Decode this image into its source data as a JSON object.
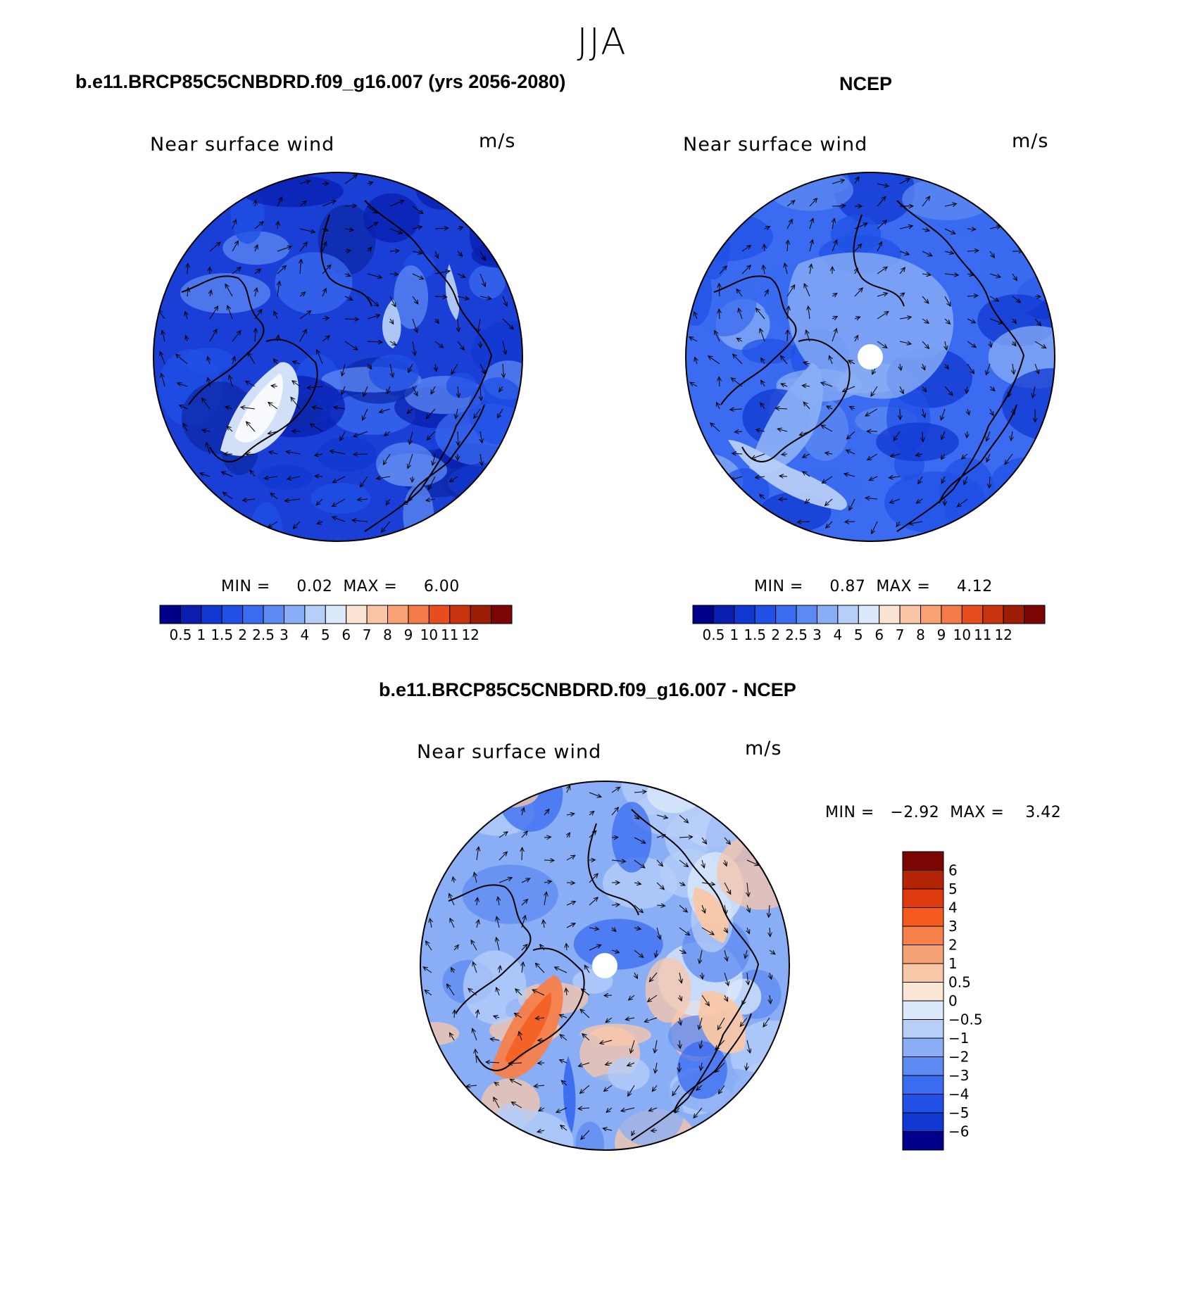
{
  "figure": {
    "season_title": "JJA"
  },
  "panel_model": {
    "title": "b.e11.BRCP85C5CNBDRD.f09_g16.007 (yrs 2056-2080)",
    "variable": "Near surface wind",
    "units": "m/s",
    "min_label": "MIN =",
    "min_value": "0.02",
    "max_label": "MAX =",
    "max_value": "6.00"
  },
  "panel_obs": {
    "title": "NCEP",
    "variable": "Near surface wind",
    "units": "m/s",
    "min_label": "MIN =",
    "min_value": "0.87",
    "max_label": "MAX =",
    "max_value": "4.12"
  },
  "panel_diff": {
    "title": "b.e11.BRCP85C5CNBDRD.f09_g16.007 - NCEP",
    "variable": "Near surface wind",
    "units": "m/s",
    "min_label": "MIN =",
    "min_value": "−2.92",
    "max_label": "MAX =",
    "max_value": "3.42"
  },
  "colorbar_wind": {
    "tick_labels": [
      "0.5",
      "1",
      "1.5",
      "2",
      "2.5",
      "3",
      "4",
      "5",
      "6",
      "7",
      "8",
      "9",
      "10",
      "11",
      "12"
    ],
    "colors": [
      "#00008a",
      "#0a1fb0",
      "#1138d2",
      "#2050e6",
      "#3a6bf0",
      "#5d89f2",
      "#8aaef5",
      "#b6cef8",
      "#dce9fb",
      "#fbe4d4",
      "#f9c5a6",
      "#f8a276",
      "#f57a4a",
      "#e84d1e",
      "#c8320c",
      "#9e1d06",
      "#7a0503"
    ]
  },
  "colorbar_diff": {
    "tick_labels": [
      "6",
      "5",
      "4",
      "3",
      "2",
      "1",
      "0.5",
      "0",
      "−0.5",
      "−1",
      "−2",
      "−3",
      "−4",
      "−5",
      "−6"
    ],
    "colors": [
      "#7a0503",
      "#b32306",
      "#e03a0f",
      "#f55a1e",
      "#f6804a",
      "#f7a274",
      "#f9c7a8",
      "#fbe6d6",
      "#dce9fb",
      "#b6cef8",
      "#8aaef5",
      "#5d89f2",
      "#3a6bf0",
      "#2050e6",
      "#1138d2",
      "#00008a"
    ]
  }
}
